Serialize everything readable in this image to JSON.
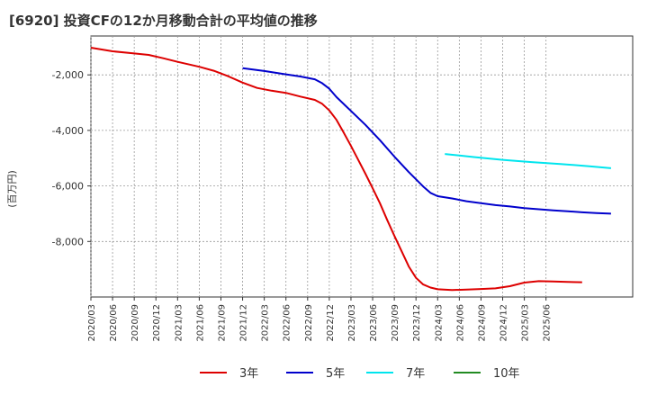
{
  "chart_data": {
    "type": "line",
    "title": "[6920]  投資CFの12か月移動合計の平均値の推移",
    "ylabel": "(百万円)",
    "xlabel": "",
    "ylim": [
      -10000,
      -600
    ],
    "yticks": [
      -2000,
      -4000,
      -6000,
      -8000
    ],
    "ytick_labels": [
      "-2,000",
      "-4,000",
      "-6,000",
      "-8,000"
    ],
    "xticks": [
      "2020/03",
      "2020/06",
      "2020/09",
      "2020/12",
      "2021/03",
      "2021/06",
      "2021/09",
      "2021/12",
      "2022/03",
      "2022/06",
      "2022/09",
      "2022/12",
      "2023/03",
      "2023/06",
      "2023/09",
      "2023/12",
      "2024/03",
      "2024/06",
      "2024/09",
      "2024/12",
      "2025/03",
      "2025/06"
    ],
    "grid": true,
    "legend_position": "bottom",
    "series": [
      {
        "name": "3年",
        "color": "#dd0000",
        "points": [
          [
            "2020/03",
            -1020
          ],
          [
            "2020/06",
            -1150
          ],
          [
            "2020/09",
            -1230
          ],
          [
            "2020/11",
            -1280
          ],
          [
            "2021/01",
            -1400
          ],
          [
            "2021/03",
            -1530
          ],
          [
            "2021/06",
            -1710
          ],
          [
            "2021/08",
            -1850
          ],
          [
            "2021/10",
            -2050
          ],
          [
            "2021/12",
            -2280
          ],
          [
            "2022/02",
            -2470
          ],
          [
            "2022/04",
            -2570
          ],
          [
            "2022/06",
            -2650
          ],
          [
            "2022/08",
            -2780
          ],
          [
            "2022/10",
            -2900
          ],
          [
            "2022/11",
            -3040
          ],
          [
            "2022/12",
            -3280
          ],
          [
            "2023/01",
            -3620
          ],
          [
            "2023/02",
            -4080
          ],
          [
            "2023/03",
            -4560
          ],
          [
            "2023/04",
            -5060
          ],
          [
            "2023/05",
            -5560
          ],
          [
            "2023/06",
            -6080
          ],
          [
            "2023/07",
            -6620
          ],
          [
            "2023/08",
            -7220
          ],
          [
            "2023/09",
            -7790
          ],
          [
            "2023/10",
            -8340
          ],
          [
            "2023/11",
            -8900
          ],
          [
            "2023/12",
            -9310
          ],
          [
            "2024/01",
            -9550
          ],
          [
            "2024/02",
            -9660
          ],
          [
            "2024/03",
            -9720
          ],
          [
            "2024/05",
            -9750
          ],
          [
            "2024/07",
            -9730
          ],
          [
            "2024/09",
            -9710
          ],
          [
            "2024/11",
            -9690
          ],
          [
            "2025/01",
            -9610
          ],
          [
            "2025/03",
            -9480
          ],
          [
            "2025/05",
            -9430
          ],
          [
            "2025/07",
            -9440
          ],
          [
            "2025/09",
            -9460
          ],
          [
            "2025/11",
            -9470
          ]
        ]
      },
      {
        "name": "5年",
        "color": "#0000cc",
        "points": [
          [
            "2021/12",
            -1760
          ],
          [
            "2022/03",
            -1860
          ],
          [
            "2022/06",
            -1980
          ],
          [
            "2022/08",
            -2060
          ],
          [
            "2022/10",
            -2160
          ],
          [
            "2022/11",
            -2300
          ],
          [
            "2022/12",
            -2500
          ],
          [
            "2023/01",
            -2800
          ],
          [
            "2023/03",
            -3300
          ],
          [
            "2023/05",
            -3800
          ],
          [
            "2023/07",
            -4350
          ],
          [
            "2023/09",
            -4940
          ],
          [
            "2023/11",
            -5500
          ],
          [
            "2024/01",
            -6020
          ],
          [
            "2024/02",
            -6250
          ],
          [
            "2024/03",
            -6370
          ],
          [
            "2024/05",
            -6450
          ],
          [
            "2024/07",
            -6550
          ],
          [
            "2024/09",
            -6620
          ],
          [
            "2024/11",
            -6690
          ],
          [
            "2025/01",
            -6740
          ],
          [
            "2025/03",
            -6800
          ],
          [
            "2025/05",
            -6840
          ],
          [
            "2025/07",
            -6880
          ],
          [
            "2025/09",
            -6910
          ],
          [
            "2025/11",
            -6950
          ],
          [
            "2026/01",
            -6980
          ],
          [
            "2026/03",
            -7000
          ]
        ]
      },
      {
        "name": "7年",
        "color": "#00e5ee",
        "points": [
          [
            "2024/04",
            -4850
          ],
          [
            "2024/08",
            -4960
          ],
          [
            "2024/12",
            -5060
          ],
          [
            "2025/04",
            -5140
          ],
          [
            "2025/08",
            -5210
          ],
          [
            "2025/12",
            -5290
          ],
          [
            "2026/03",
            -5360
          ]
        ]
      },
      {
        "name": "10年",
        "color": "#228b22",
        "points": []
      }
    ]
  }
}
